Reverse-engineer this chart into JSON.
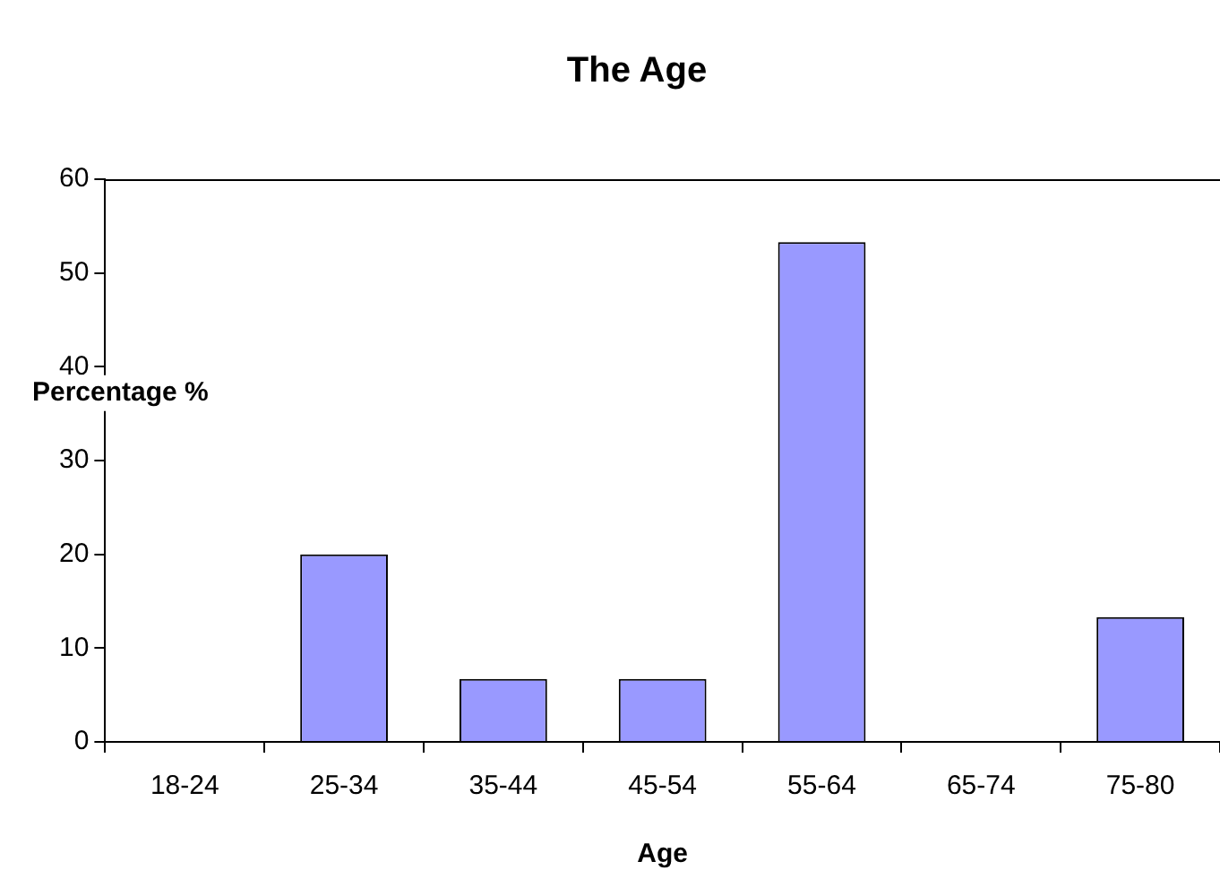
{
  "chart_data": {
    "type": "bar",
    "title": "The Age",
    "xlabel": "Age",
    "ylabel": "Percentage %",
    "categories": [
      "18-24",
      "25-34",
      "35-44",
      "45-54",
      "55-64",
      "65-74",
      "75-80"
    ],
    "values": [
      0,
      20,
      6.7,
      6.7,
      53.3,
      0,
      13.3
    ],
    "color": "#9999ff",
    "ylim": [
      0,
      60
    ],
    "yticks": [
      0,
      10,
      20,
      30,
      40,
      50,
      60
    ],
    "grid": false,
    "legend": false
  }
}
